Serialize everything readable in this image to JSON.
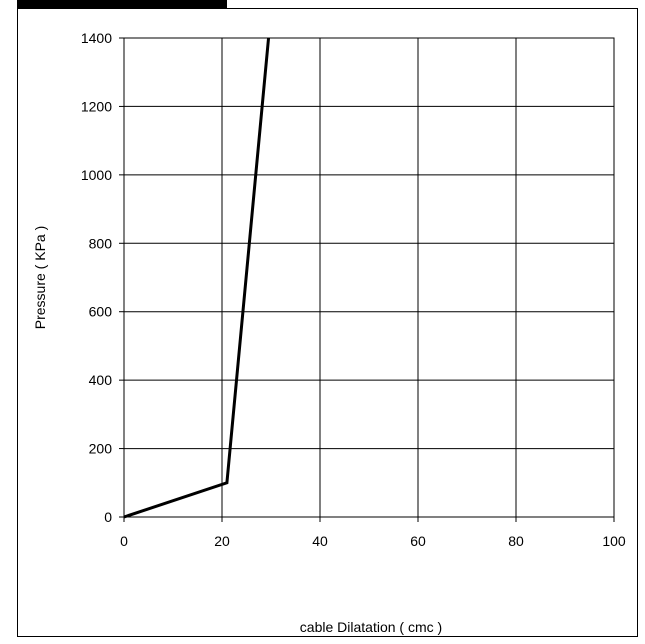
{
  "chart_data": {
    "type": "line",
    "title": "",
    "xlabel": "cable Dilatation ( cmc )",
    "ylabel": "Pressure ( KPa )",
    "xlim": [
      0,
      100
    ],
    "ylim": [
      0,
      1400
    ],
    "xticks": [
      "0",
      "20",
      "40",
      "60",
      "80",
      "100"
    ],
    "yticks": [
      "0",
      "200",
      "400",
      "600",
      "800",
      "1000",
      "1200",
      "1400"
    ],
    "grid": true,
    "legend": "none",
    "series": [
      {
        "color": "#000000",
        "points": [
          {
            "x": 0,
            "y": 0
          },
          {
            "x": 21,
            "y": 100
          },
          {
            "x": 29.5,
            "y": 1400
          }
        ]
      }
    ]
  }
}
